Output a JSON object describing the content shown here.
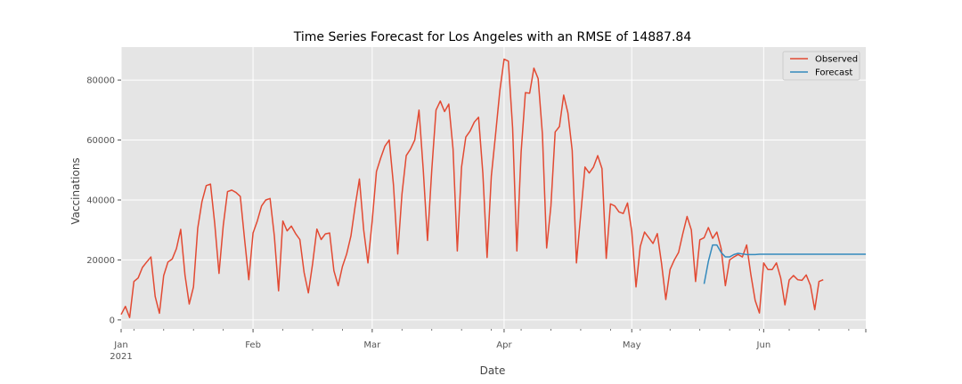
{
  "chart_data": {
    "type": "line",
    "title": "Time Series Forecast for Los Angeles with an RMSE of 14887.84",
    "xlabel": "Date",
    "ylabel": "Vaccinations",
    "x_start": "2021-01-01",
    "x_end": "2021-06-25",
    "ylim": [
      -3000,
      91000
    ],
    "yticks": [
      0,
      20000,
      40000,
      60000,
      80000
    ],
    "ytick_labels": [
      "0",
      "20000",
      "40000",
      "60000",
      "80000"
    ],
    "xticks": [
      {
        "date": "2021-01-01",
        "label": "Jan",
        "sublabel": "2021"
      },
      {
        "date": "2021-02-01",
        "label": "Feb",
        "sublabel": ""
      },
      {
        "date": "2021-03-01",
        "label": "Mar",
        "sublabel": ""
      },
      {
        "date": "2021-04-01",
        "label": "Apr",
        "sublabel": ""
      },
      {
        "date": "2021-05-01",
        "label": "May",
        "sublabel": ""
      },
      {
        "date": "2021-06-01",
        "label": "Jun",
        "sublabel": ""
      }
    ],
    "grid": true,
    "legend_position": "top-right",
    "series": [
      {
        "name": "Observed",
        "color": "#E24A33",
        "start_date": "2021-01-01",
        "values": [
          1800,
          4500,
          800,
          12800,
          14000,
          17500,
          19300,
          21000,
          7800,
          2200,
          14800,
          19300,
          20300,
          23800,
          30200,
          15000,
          5300,
          11000,
          30600,
          39500,
          44800,
          45300,
          32000,
          15500,
          31500,
          42800,
          43300,
          42500,
          41200,
          27000,
          13400,
          29000,
          33000,
          38000,
          40000,
          40500,
          28000,
          9700,
          33000,
          29700,
          31300,
          28800,
          26800,
          15800,
          9000,
          18800,
          30300,
          26800,
          28700,
          29000,
          16400,
          11400,
          17800,
          22000,
          28000,
          38000,
          47000,
          30000,
          19000,
          33000,
          49500,
          54000,
          58000,
          60000,
          45000,
          22000,
          42000,
          54800,
          57000,
          60000,
          70000,
          50000,
          26500,
          50000,
          70000,
          73000,
          69500,
          72000,
          57000,
          23000,
          51000,
          61000,
          63000,
          66000,
          67600,
          49000,
          20800,
          48000,
          62000,
          76500,
          87000,
          86300,
          64000,
          23000,
          56000,
          75800,
          75600,
          84000,
          80500,
          62000,
          24000,
          38000,
          62700,
          64500,
          75000,
          69000,
          56500,
          19000,
          35000,
          51000,
          49000,
          51000,
          54800,
          50500,
          20500,
          38700,
          38000,
          36000,
          35500,
          39000,
          29500,
          11000,
          24500,
          29300,
          27400,
          25500,
          28800,
          18800,
          6800,
          16800,
          20000,
          22500,
          28800,
          34500,
          30000,
          12800,
          26700,
          27400,
          30800,
          27200,
          29300,
          23800,
          11400,
          20000,
          21000,
          21800,
          21000,
          25000,
          15000,
          6500,
          2300,
          19000,
          16800,
          16800,
          19000,
          14000,
          5000,
          13300,
          14800,
          13400,
          13200,
          15000,
          11500,
          3400,
          12800,
          13400
        ]
      },
      {
        "name": "Forecast",
        "color": "#348ABD",
        "start_date": "2021-05-18",
        "values": [
          12000,
          19500,
          25000,
          25000,
          22500,
          21000,
          21000,
          21800,
          22200,
          22000,
          21800,
          21800,
          21800,
          21900,
          21900,
          21900,
          21900,
          21900,
          21900,
          21900,
          21900,
          21900,
          21900,
          21900,
          21900,
          21900,
          21900,
          21900,
          21900,
          21900,
          21900,
          21900,
          21900,
          21900,
          21900,
          21900,
          21900,
          21900,
          21900
        ]
      }
    ]
  }
}
